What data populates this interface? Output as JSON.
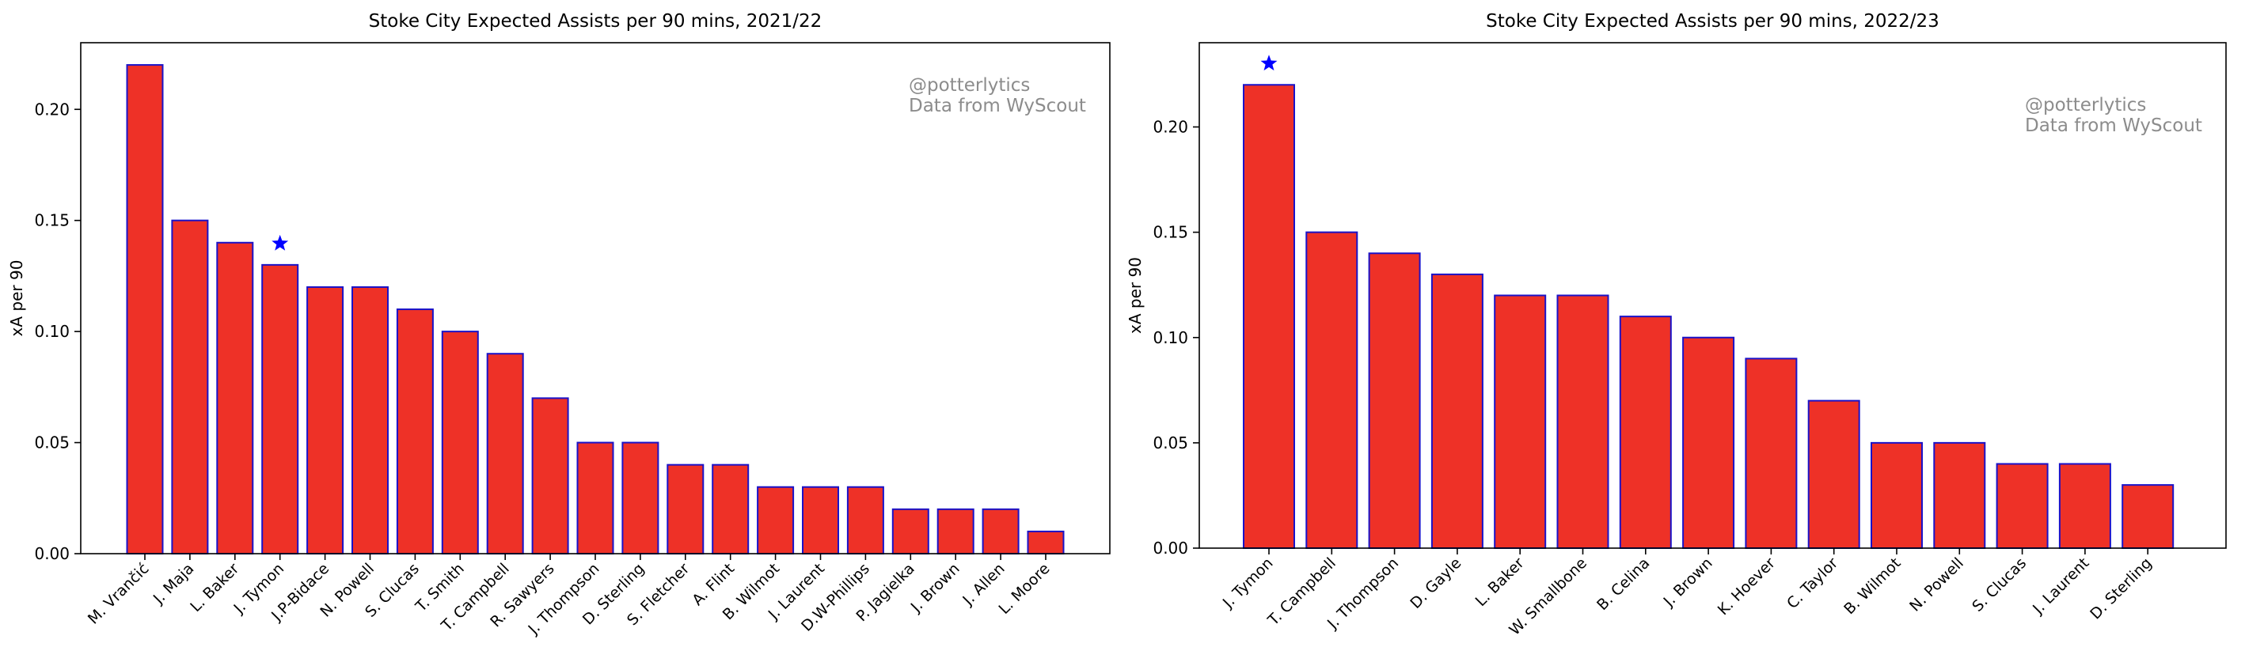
{
  "colors": {
    "bar_fill": "#EE3127",
    "bar_edge": "#1a12c8",
    "star": "#0000ff",
    "watermark": "#8c8c8c",
    "axis": "#000000"
  },
  "chart_data": [
    {
      "type": "bar",
      "title": "Stoke City Expected Assists per 90 mins, 2021/22",
      "xlabel": "",
      "ylabel": "xA per 90",
      "annotation_lines": [
        "@potterlytics",
        "Data from WyScout"
      ],
      "annotation_position": "top-right",
      "highlight": {
        "category": "J. Tymon",
        "marker": "star"
      },
      "ylim": [
        0,
        0.23
      ],
      "yticks": [
        0.0,
        0.05,
        0.1,
        0.15,
        0.2
      ],
      "ytick_labels": [
        "0.00",
        "0.05",
        "0.10",
        "0.15",
        "0.20"
      ],
      "categories": [
        "M. Vrančić",
        "J. Maja",
        "L. Baker",
        "J. Tymon",
        "J.P-Bidace",
        "N. Powell",
        "S. Clucas",
        "T. Smith",
        "T. Campbell",
        "R. Sawyers",
        "J. Thompson",
        "D. Sterling",
        "S. Fletcher",
        "A. Flint",
        "B. Wilmot",
        "J. Laurent",
        "D.W-Phillips",
        "P. Jagielka",
        "J. Brown",
        "J. Allen",
        "L. Moore"
      ],
      "values": [
        0.22,
        0.15,
        0.14,
        0.13,
        0.12,
        0.12,
        0.11,
        0.1,
        0.09,
        0.07,
        0.05,
        0.05,
        0.04,
        0.04,
        0.03,
        0.03,
        0.03,
        0.02,
        0.02,
        0.02,
        0.01
      ]
    },
    {
      "type": "bar",
      "title": "Stoke City Expected Assists per 90 mins, 2022/23",
      "xlabel": "",
      "ylabel": "xA per 90",
      "annotation_lines": [
        "@potterlytics",
        "Data from WyScout"
      ],
      "annotation_position": "top-right",
      "highlight": {
        "category": "J. Tymon",
        "marker": "star"
      },
      "ylim": [
        0,
        0.24
      ],
      "yticks": [
        0.0,
        0.05,
        0.1,
        0.15,
        0.2
      ],
      "ytick_labels": [
        "0.00",
        "0.05",
        "0.10",
        "0.15",
        "0.20"
      ],
      "categories": [
        "J. Tymon",
        "T. Campbell",
        "J. Thompson",
        "D. Gayle",
        "L. Baker",
        "W. Smallbone",
        "B. Celina",
        "J. Brown",
        "K. Hoever",
        "C. Taylor",
        "B. Wilmot",
        "N. Powell",
        "S. Clucas",
        "J. Laurent",
        "D. Sterling"
      ],
      "values": [
        0.22,
        0.15,
        0.14,
        0.13,
        0.12,
        0.12,
        0.11,
        0.1,
        0.09,
        0.07,
        0.05,
        0.05,
        0.04,
        0.04,
        0.03
      ]
    }
  ]
}
